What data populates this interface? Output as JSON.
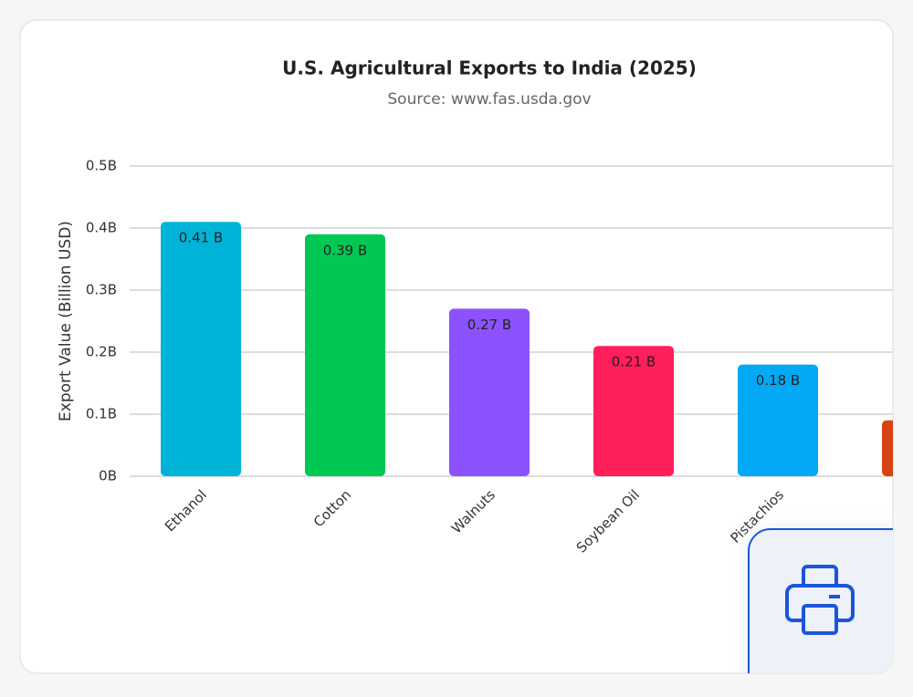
{
  "chart_data": {
    "type": "bar",
    "title": "U.S. Agricultural Exports to India (2025)",
    "subtitle": "Source: www.fas.usda.gov",
    "y_label": "Export Value (Billion USD)",
    "categories": [
      "Ethanol",
      "Cotton",
      "Walnuts",
      "Soybean Oil",
      "Pistachios",
      null
    ],
    "values": [
      0.41,
      0.39,
      0.27,
      0.21,
      0.18,
      0.09
    ],
    "value_labels": [
      "0.41 B",
      "0.39 B",
      "0.27 B",
      "0.21 B",
      "0.18 B",
      null
    ],
    "colors": [
      "#00b4d8",
      "#00c853",
      "#8c52ff",
      "#ff1f5a",
      "#03a9f4",
      "#d84315"
    ],
    "ylim": [
      0,
      0.5
    ],
    "yticks": [
      {
        "value": 0,
        "label": "0B"
      },
      {
        "value": 0.1,
        "label": "0.1B"
      },
      {
        "value": 0.2,
        "label": "0.2B"
      },
      {
        "value": 0.3,
        "label": "0.3B"
      },
      {
        "value": 0.4,
        "label": "0.4B"
      },
      {
        "value": 0.5,
        "label": "0.5B"
      }
    ],
    "grid": true
  }
}
